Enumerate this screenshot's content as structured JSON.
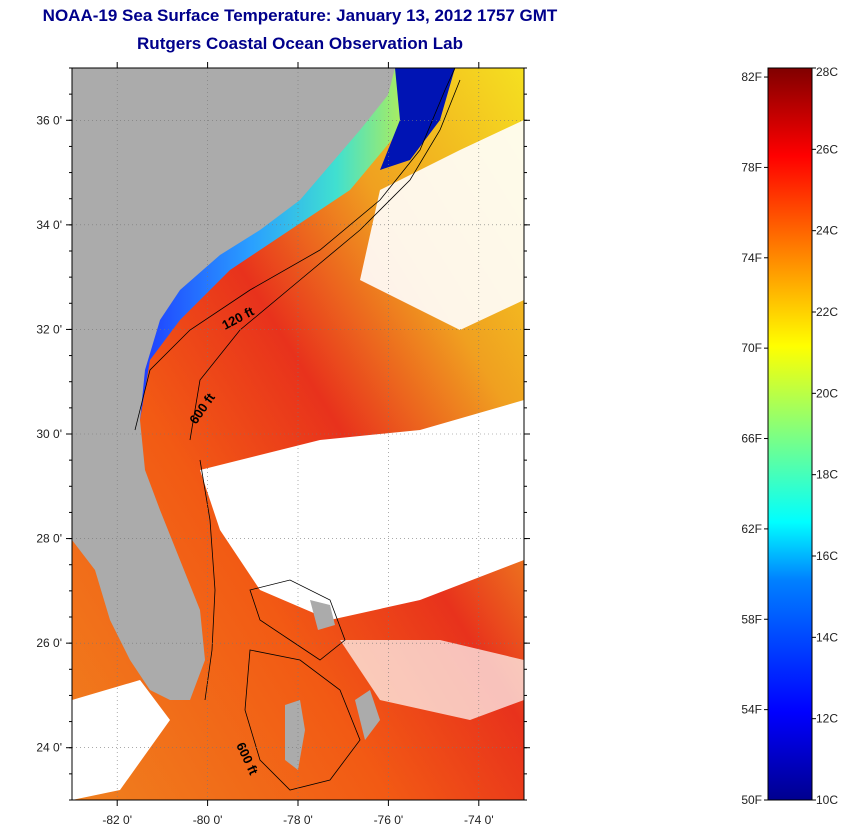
{
  "header": {
    "title": "NOAA-19 Sea Surface Temperature:  January 13, 2012 1757 GMT",
    "subtitle": "Rutgers Coastal Ocean Observation Lab"
  },
  "map": {
    "lat_range": [
      23.0,
      37.0
    ],
    "lon_range": [
      -83.0,
      -73.0
    ],
    "lat_ticks": [
      {
        "value": 24,
        "label": "24 0'"
      },
      {
        "value": 26,
        "label": "26 0'"
      },
      {
        "value": 28,
        "label": "28 0'"
      },
      {
        "value": 30,
        "label": "30 0'"
      },
      {
        "value": 32,
        "label": "32 0'"
      },
      {
        "value": 34,
        "label": "34 0'"
      },
      {
        "value": 36,
        "label": "36 0'"
      }
    ],
    "lon_ticks": [
      {
        "value": -82,
        "label": "-82 0'"
      },
      {
        "value": -80,
        "label": "-80 0'"
      },
      {
        "value": -78,
        "label": "-78 0'"
      },
      {
        "value": -76,
        "label": "-76 0'"
      },
      {
        "value": -74,
        "label": "-74 0'"
      }
    ],
    "grid": "dotted",
    "contour_labels": [
      "120 ft",
      "600 ft",
      "600 ft"
    ],
    "colors": {
      "land": "#ababab",
      "cloud": "#ffffff"
    }
  },
  "colorbar": {
    "min_c": 10,
    "max_c": 28,
    "celsius_labels": [
      {
        "value": 28,
        "label": "28C"
      },
      {
        "value": 26,
        "label": "26C"
      },
      {
        "value": 24,
        "label": "24C"
      },
      {
        "value": 22,
        "label": "22C"
      },
      {
        "value": 20,
        "label": "20C"
      },
      {
        "value": 18,
        "label": "18C"
      },
      {
        "value": 16,
        "label": "16C"
      },
      {
        "value": 14,
        "label": "14C"
      },
      {
        "value": 12,
        "label": "12C"
      },
      {
        "value": 10,
        "label": "10C"
      }
    ],
    "fahrenheit_labels": [
      {
        "value": 82,
        "label": "82F"
      },
      {
        "value": 78,
        "label": "78F"
      },
      {
        "value": 74,
        "label": "74F"
      },
      {
        "value": 70,
        "label": "70F"
      },
      {
        "value": 66,
        "label": "66F"
      },
      {
        "value": 62,
        "label": "62F"
      },
      {
        "value": 58,
        "label": "58F"
      },
      {
        "value": 54,
        "label": "54F"
      },
      {
        "value": 50,
        "label": "50F"
      }
    ]
  }
}
